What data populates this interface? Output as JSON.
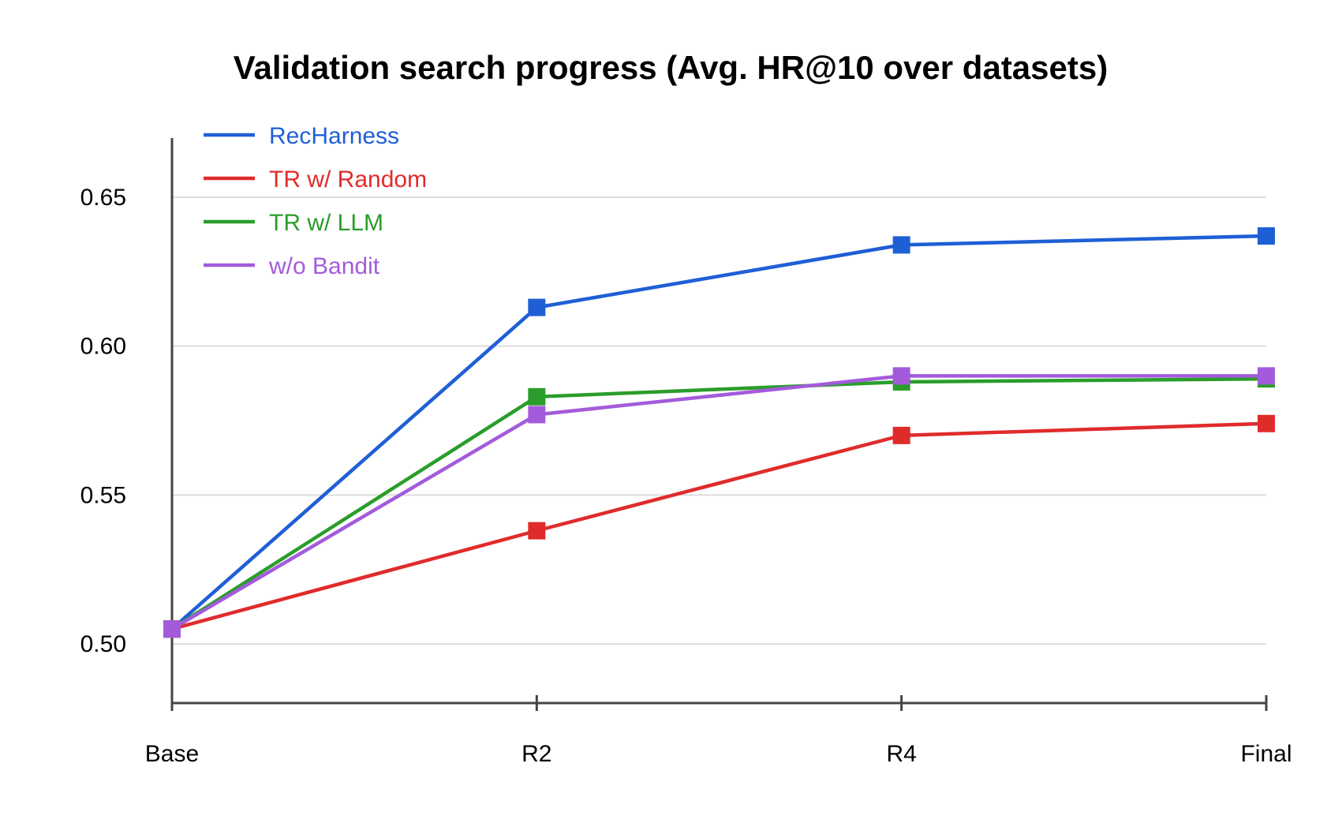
{
  "chart_data": {
    "type": "line",
    "title": "Validation search progress (Avg. HR@10 over datasets)",
    "xlabel": "",
    "ylabel": "",
    "categories": [
      "Base",
      "R2",
      "R4",
      "Final"
    ],
    "ylim": [
      0.48,
      0.67
    ],
    "yticks": [
      0.5,
      0.55,
      0.6,
      0.65
    ],
    "ytick_labels": [
      "0.50",
      "0.55",
      "0.60",
      "0.65"
    ],
    "grid": true,
    "legend_position": "top-left",
    "marker": "square",
    "series": [
      {
        "name": "RecHarness",
        "color": "#1f5fd6",
        "values": [
          0.505,
          0.613,
          0.634,
          0.637
        ]
      },
      {
        "name": "TR w/ Random",
        "color": "#e02b2b",
        "values": [
          0.505,
          0.538,
          0.57,
          0.574
        ]
      },
      {
        "name": "TR w/ LLM",
        "color": "#2a9d2a",
        "values": [
          0.505,
          0.583,
          0.588,
          0.589
        ]
      },
      {
        "name": "w/o Bandit",
        "color": "#a35bdb",
        "values": [
          0.505,
          0.577,
          0.59,
          0.59
        ]
      }
    ]
  }
}
